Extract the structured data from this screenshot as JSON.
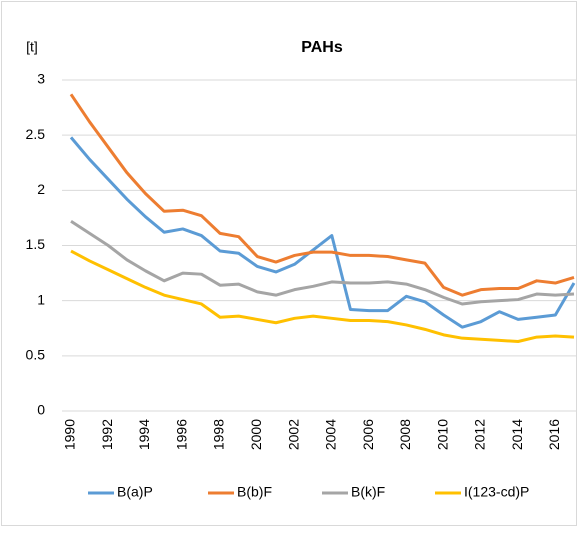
{
  "chart_data": {
    "type": "line",
    "title": "PAHs",
    "y_label": "[t]",
    "x": [
      1990,
      1991,
      1992,
      1993,
      1994,
      1995,
      1996,
      1997,
      1998,
      1999,
      2000,
      2001,
      2002,
      2003,
      2004,
      2005,
      2006,
      2007,
      2008,
      2009,
      2010,
      2011,
      2012,
      2013,
      2014,
      2015,
      2016,
      2017
    ],
    "xlim": [
      1990,
      2017
    ],
    "xticks": [
      1990,
      1992,
      1994,
      1996,
      1998,
      2000,
      2002,
      2004,
      2006,
      2008,
      2010,
      2012,
      2014,
      2016
    ],
    "ylim": [
      0,
      3
    ],
    "yticks": [
      0,
      0.5,
      1,
      1.5,
      2,
      2.5,
      3
    ],
    "grid": true,
    "legend": "bottom",
    "series": [
      {
        "name": "B(a)P",
        "color": "#5b9bd5",
        "values": [
          2.48,
          2.28,
          2.1,
          1.92,
          1.76,
          1.62,
          1.65,
          1.59,
          1.45,
          1.43,
          1.31,
          1.26,
          1.33,
          1.46,
          1.59,
          0.92,
          0.91,
          0.91,
          1.04,
          0.99,
          0.87,
          0.76,
          0.81,
          0.9,
          0.83,
          0.85,
          0.87,
          1.16
        ]
      },
      {
        "name": "B(b)F",
        "color": "#ed7d31",
        "values": [
          2.87,
          2.62,
          2.39,
          2.16,
          1.97,
          1.81,
          1.82,
          1.77,
          1.61,
          1.58,
          1.4,
          1.35,
          1.41,
          1.44,
          1.44,
          1.41,
          1.41,
          1.4,
          1.37,
          1.34,
          1.12,
          1.05,
          1.1,
          1.11,
          1.11,
          1.18,
          1.16,
          1.21
        ]
      },
      {
        "name": "B(k)F",
        "color": "#a5a5a5",
        "values": [
          1.72,
          1.61,
          1.5,
          1.37,
          1.27,
          1.18,
          1.25,
          1.24,
          1.14,
          1.15,
          1.08,
          1.05,
          1.1,
          1.13,
          1.17,
          1.16,
          1.16,
          1.17,
          1.15,
          1.1,
          1.03,
          0.97,
          0.99,
          1.0,
          1.01,
          1.06,
          1.05,
          1.06
        ]
      },
      {
        "name": "I(123-cd)P",
        "color": "#ffc000",
        "values": [
          1.45,
          1.36,
          1.28,
          1.2,
          1.12,
          1.05,
          1.01,
          0.97,
          0.85,
          0.86,
          0.83,
          0.8,
          0.84,
          0.86,
          0.84,
          0.82,
          0.82,
          0.81,
          0.78,
          0.74,
          0.69,
          0.66,
          0.65,
          0.64,
          0.63,
          0.67,
          0.68,
          0.67
        ]
      }
    ]
  }
}
